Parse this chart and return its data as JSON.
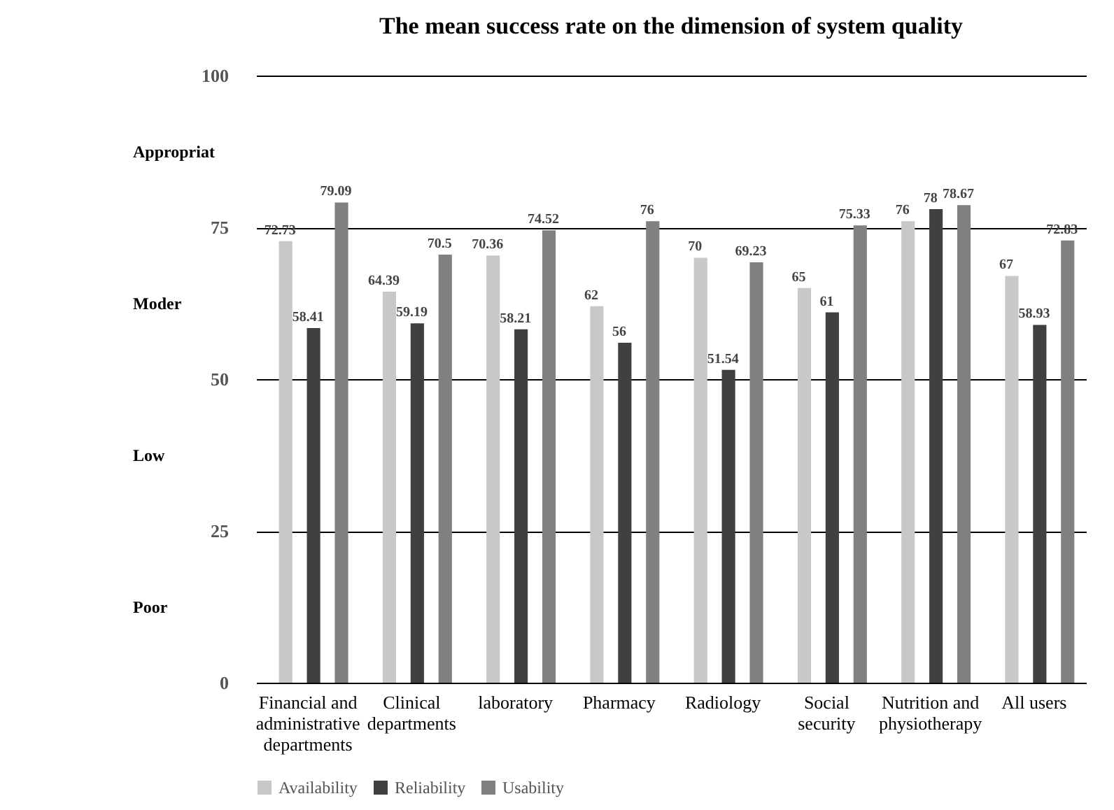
{
  "chart_data": {
    "type": "bar",
    "title": "The mean success rate on the dimension of system quality",
    "categories": [
      "Financial and administrative departments",
      "Clinical departments",
      "laboratory",
      "Pharmacy",
      "Radiology",
      "Social security",
      "Nutrition and physiotherapy",
      "All users"
    ],
    "series": [
      {
        "name": "Availability",
        "color": "#c8c8c8",
        "values": [
          72.73,
          64.39,
          70.36,
          62,
          70,
          65,
          76,
          67
        ]
      },
      {
        "name": "Reliability",
        "color": "#404040",
        "values": [
          58.41,
          59.19,
          58.21,
          56,
          51.54,
          61,
          78,
          58.93
        ]
      },
      {
        "name": "Usability",
        "color": "#808080",
        "values": [
          79.09,
          70.5,
          74.52,
          76,
          69.23,
          75.33,
          78.67,
          72.83
        ]
      }
    ],
    "ylim": [
      0,
      100
    ],
    "yticks": [
      0,
      25,
      50,
      75,
      100
    ],
    "grid": "y",
    "legend": "bottom",
    "data_labels": true,
    "annotations": [
      "Appropriat",
      "Moder",
      "Low",
      "Poor"
    ]
  }
}
